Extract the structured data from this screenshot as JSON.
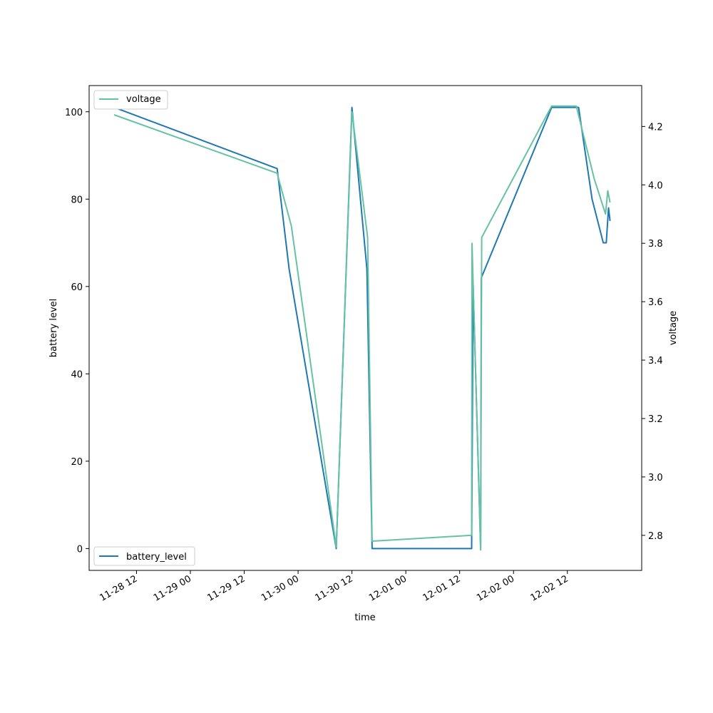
{
  "chart_data": {
    "type": "line",
    "title": "",
    "xlabel": "time",
    "ylabel_left": "battery level",
    "ylabel_right": "voltage",
    "x_tick_labels": [
      "11-28 12",
      "11-29 00",
      "11-29 12",
      "11-30 00",
      "11-30 12",
      "12-01 00",
      "12-01 12",
      "12-02 00",
      "12-02 12"
    ],
    "xlim": [
      "2023-11-28 07:00",
      "2023-12-02 23:00"
    ],
    "y_left": {
      "lim": [
        -5,
        106
      ],
      "ticks": [
        0,
        20,
        40,
        60,
        80,
        100
      ]
    },
    "y_right": {
      "lim": [
        2.68,
        4.34
      ],
      "ticks": [
        "2.8",
        "3.0",
        "3.2",
        "3.4",
        "3.6",
        "3.8",
        "4.0",
        "4.2"
      ]
    },
    "series": [
      {
        "name": "battery_level",
        "axis": "left",
        "color": "#1f77b4",
        "legend_position": "lower-left",
        "points": [
          [
            "2023-11-28 07:00",
            101
          ],
          [
            "2023-11-29 19:20",
            87
          ],
          [
            "2023-11-29 22:00",
            64
          ],
          [
            "2023-11-30 08:30",
            0
          ],
          [
            "2023-11-30 12:00",
            101
          ],
          [
            "2023-11-30 15:20",
            64
          ],
          [
            "2023-11-30 16:30",
            0
          ],
          [
            "2023-12-01 14:40",
            0
          ],
          [
            "2023-12-01 15:00",
            60
          ],
          [
            "2023-12-01 16:40",
            0
          ],
          [
            "2023-12-01 16:50",
            62
          ],
          [
            "2023-12-02 08:30",
            101
          ],
          [
            "2023-12-02 14:30",
            101
          ],
          [
            "2023-12-02 17:30",
            80
          ],
          [
            "2023-12-02 20:00",
            70
          ],
          [
            "2023-12-02 20:40",
            70
          ],
          [
            "2023-12-02 21:10",
            78
          ],
          [
            "2023-12-02 21:30",
            75
          ]
        ]
      },
      {
        "name": "voltage",
        "axis": "right",
        "color": "#66c2a5",
        "legend_position": "upper-left",
        "points": [
          [
            "2023-11-28 07:00",
            4.24
          ],
          [
            "2023-11-29 19:20",
            4.04
          ],
          [
            "2023-11-29 22:30",
            3.86
          ],
          [
            "2023-11-30 08:30",
            2.76
          ],
          [
            "2023-11-30 12:00",
            4.25
          ],
          [
            "2023-11-30 15:30",
            3.82
          ],
          [
            "2023-11-30 16:30",
            2.78
          ],
          [
            "2023-12-01 14:40",
            2.8
          ],
          [
            "2023-12-01 14:45",
            3.8
          ],
          [
            "2023-12-01 16:40",
            2.75
          ],
          [
            "2023-12-01 16:55",
            3.82
          ],
          [
            "2023-12-02 08:30",
            4.27
          ],
          [
            "2023-12-02 14:00",
            4.27
          ],
          [
            "2023-12-02 18:00",
            4.02
          ],
          [
            "2023-12-02 20:30",
            3.9
          ],
          [
            "2023-12-02 21:00",
            3.98
          ],
          [
            "2023-12-02 21:30",
            3.94
          ]
        ]
      }
    ]
  }
}
